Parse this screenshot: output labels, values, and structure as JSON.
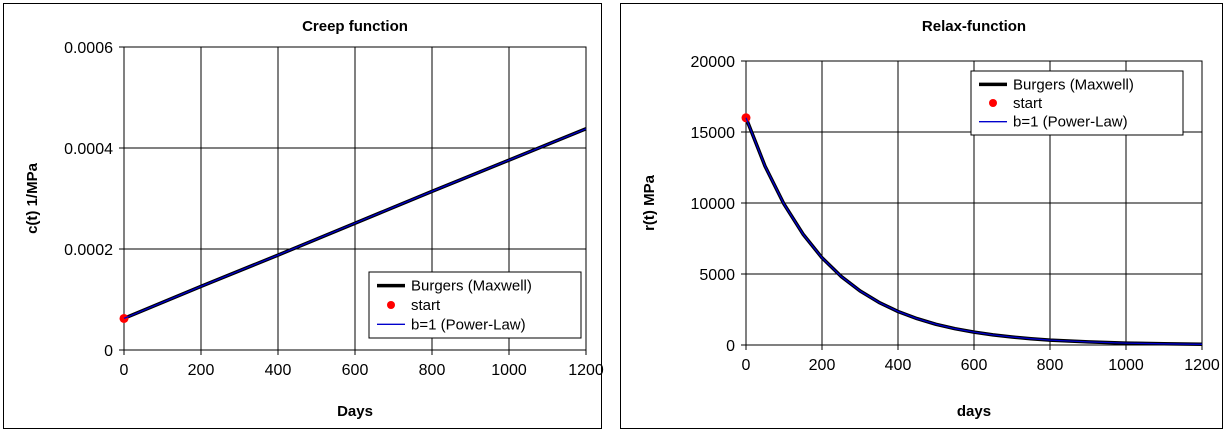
{
  "chart_data": [
    {
      "type": "line",
      "title": "Creep function",
      "xlabel": "Days",
      "ylabel": "c(t) 1/MPa",
      "xlim": [
        0,
        1200
      ],
      "ylim": [
        0,
        0.0006
      ],
      "xticks": [
        "0",
        "200",
        "400",
        "600",
        "800",
        "1000",
        "1200"
      ],
      "yticks": [
        "0",
        "0.0002",
        "0.0004",
        "0.0006"
      ],
      "grid": true,
      "legend_position": "bottom-right",
      "series": [
        {
          "name": "Burgers (Maxwell)",
          "color": "#000000",
          "style": "thick-line",
          "x": [
            0,
            200,
            400,
            600,
            800,
            1000,
            1200
          ],
          "y": [
            6.25e-05,
            0.000126,
            0.000188,
            0.000251,
            0.000314,
            0.000376,
            0.000438
          ]
        },
        {
          "name": "start",
          "color": "#ff0000",
          "style": "marker",
          "x": [
            0
          ],
          "y": [
            6.25e-05
          ]
        },
        {
          "name": "b=1 (Power-Law)",
          "color": "#0000cc",
          "style": "thin-line",
          "x": [
            0,
            200,
            400,
            600,
            800,
            1000,
            1200
          ],
          "y": [
            6.25e-05,
            0.000126,
            0.000188,
            0.000251,
            0.000314,
            0.000376,
            0.000438
          ]
        }
      ]
    },
    {
      "type": "line",
      "title": "Relax-function",
      "xlabel": "days",
      "ylabel": "r(t) MPa",
      "xlim": [
        0,
        1200
      ],
      "ylim": [
        0,
        20000
      ],
      "xticks": [
        "0",
        "200",
        "400",
        "600",
        "800",
        "1000",
        "1200"
      ],
      "yticks": [
        "0",
        "5000",
        "10000",
        "15000",
        "20000"
      ],
      "grid": true,
      "legend_position": "top-right",
      "series": [
        {
          "name": "Burgers (Maxwell)",
          "color": "#000000",
          "style": "thick-line",
          "x": [
            0,
            50,
            100,
            150,
            200,
            250,
            300,
            350,
            400,
            450,
            500,
            550,
            600,
            650,
            700,
            750,
            800,
            900,
            1000,
            1100,
            1200
          ],
          "y": [
            16000,
            12600,
            9920,
            7810,
            6140,
            4840,
            3810,
            3000,
            2360,
            1860,
            1460,
            1150,
            906,
            713,
            561,
            442,
            348,
            215,
            133,
            83,
            51
          ]
        },
        {
          "name": "start",
          "color": "#ff0000",
          "style": "marker",
          "x": [
            0
          ],
          "y": [
            16000
          ]
        },
        {
          "name": "b=1 (Power-Law)",
          "color": "#0000cc",
          "style": "thin-line",
          "x": [
            0,
            50,
            100,
            150,
            200,
            250,
            300,
            350,
            400,
            450,
            500,
            550,
            600,
            650,
            700,
            750,
            800,
            900,
            1000,
            1100,
            1200
          ],
          "y": [
            16000,
            12600,
            9920,
            7810,
            6140,
            4840,
            3810,
            3000,
            2360,
            1860,
            1460,
            1150,
            906,
            713,
            561,
            442,
            348,
            215,
            133,
            83,
            51
          ]
        }
      ]
    }
  ]
}
